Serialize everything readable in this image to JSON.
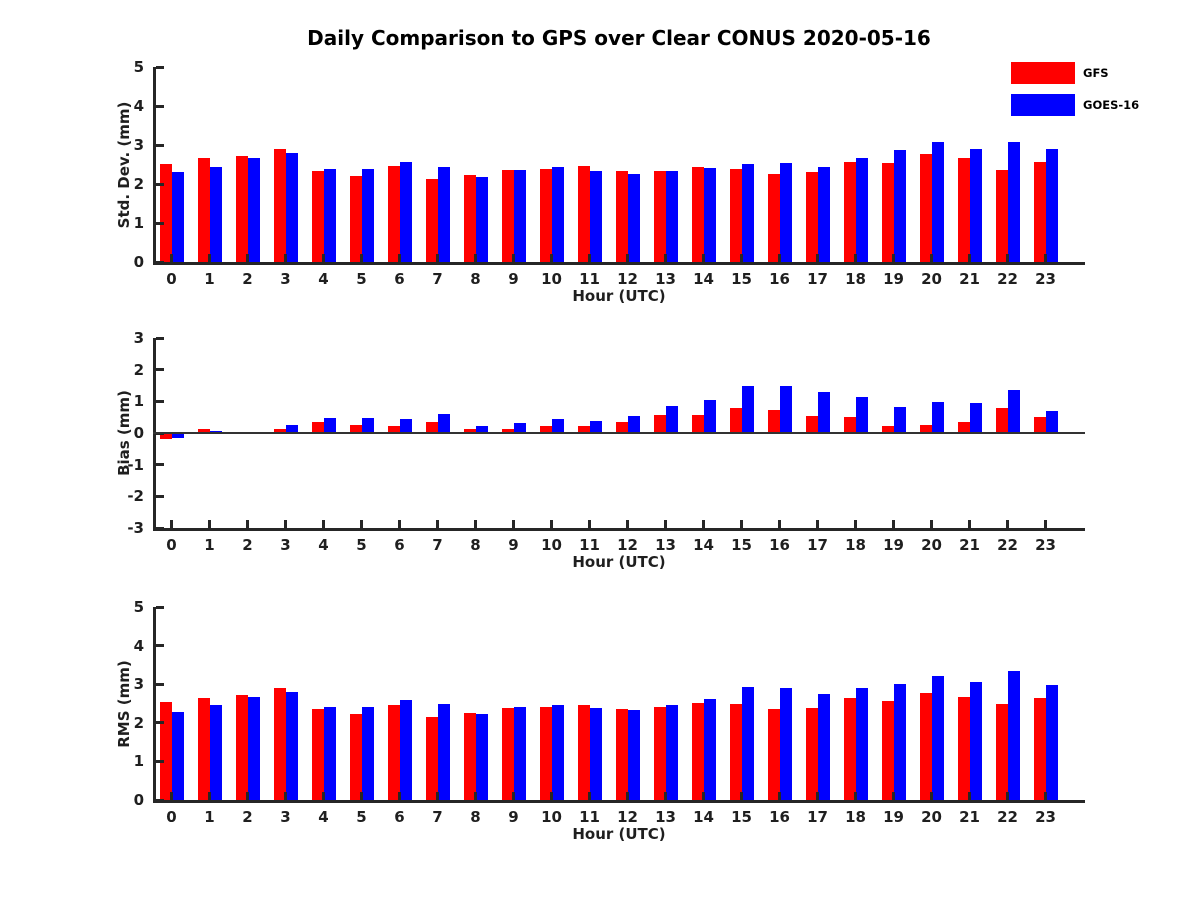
{
  "title": "Daily Comparison to GPS over Clear CONUS 2020-05-16",
  "axis_color": "#262626",
  "legend": {
    "position": "top-right",
    "items": [
      {
        "label": "GFS",
        "color": "#ff0000"
      },
      {
        "label": "GOES-16",
        "color": "#0000ff"
      }
    ]
  },
  "chart_data": [
    {
      "type": "bar",
      "name": "std-dev",
      "ylabel": "Std. Dev. (mm)",
      "xlabel": "Hour (UTC)",
      "ylim": [
        0,
        5
      ],
      "yticks": [
        0,
        1,
        2,
        3,
        4,
        5
      ],
      "grid": false,
      "zero_line": false,
      "categories": [
        "0",
        "1",
        "2",
        "3",
        "4",
        "5",
        "6",
        "7",
        "8",
        "9",
        "10",
        "11",
        "12",
        "13",
        "14",
        "15",
        "16",
        "17",
        "18",
        "19",
        "20",
        "21",
        "22",
        "23"
      ],
      "series": [
        {
          "name": "GFS",
          "color": "#ff0000",
          "values": [
            2.52,
            2.66,
            2.71,
            2.91,
            2.34,
            2.21,
            2.46,
            2.13,
            2.23,
            2.36,
            2.38,
            2.46,
            2.33,
            2.34,
            2.44,
            2.38,
            2.25,
            2.3,
            2.57,
            2.55,
            2.76,
            2.66,
            2.36,
            2.57
          ]
        },
        {
          "name": "GOES-16",
          "color": "#0000ff",
          "values": [
            2.31,
            2.43,
            2.67,
            2.8,
            2.39,
            2.39,
            2.56,
            2.44,
            2.18,
            2.36,
            2.43,
            2.34,
            2.26,
            2.33,
            2.42,
            2.52,
            2.53,
            2.43,
            2.66,
            2.87,
            3.07,
            2.91,
            3.08,
            2.91
          ]
        }
      ]
    },
    {
      "type": "bar",
      "name": "bias",
      "ylabel": "Bias (mm)",
      "xlabel": "Hour (UTC)",
      "ylim": [
        -3,
        3
      ],
      "yticks": [
        -3,
        -2,
        -1,
        0,
        1,
        2,
        3
      ],
      "grid": false,
      "zero_line": true,
      "categories": [
        "0",
        "1",
        "2",
        "3",
        "4",
        "5",
        "6",
        "7",
        "8",
        "9",
        "10",
        "11",
        "12",
        "13",
        "14",
        "15",
        "16",
        "17",
        "18",
        "19",
        "20",
        "21",
        "22",
        "23"
      ],
      "series": [
        {
          "name": "GFS",
          "color": "#ff0000",
          "values": [
            -0.19,
            0.12,
            -0.04,
            0.13,
            0.34,
            0.26,
            0.23,
            0.36,
            0.13,
            0.12,
            0.23,
            0.22,
            0.35,
            0.56,
            0.57,
            0.8,
            0.72,
            0.55,
            0.5,
            0.22,
            0.25,
            0.34,
            0.79,
            0.52
          ]
        },
        {
          "name": "GOES-16",
          "color": "#0000ff",
          "values": [
            -0.15,
            0.06,
            -0.02,
            0.26,
            0.47,
            0.47,
            0.45,
            0.6,
            0.23,
            0.31,
            0.43,
            0.38,
            0.53,
            0.84,
            1.04,
            1.47,
            1.47,
            1.28,
            1.15,
            0.83,
            0.97,
            0.95,
            1.36,
            0.7
          ]
        }
      ]
    },
    {
      "type": "bar",
      "name": "rms",
      "ylabel": "RMS (mm)",
      "xlabel": "Hour (UTC)",
      "ylim": [
        0,
        5
      ],
      "yticks": [
        0,
        1,
        2,
        3,
        4,
        5
      ],
      "grid": false,
      "zero_line": false,
      "categories": [
        "0",
        "1",
        "2",
        "3",
        "4",
        "5",
        "6",
        "7",
        "8",
        "9",
        "10",
        "11",
        "12",
        "13",
        "14",
        "15",
        "16",
        "17",
        "18",
        "19",
        "20",
        "21",
        "22",
        "23"
      ],
      "series": [
        {
          "name": "GFS",
          "color": "#ff0000",
          "values": [
            2.53,
            2.65,
            2.71,
            2.91,
            2.37,
            2.22,
            2.46,
            2.16,
            2.25,
            2.38,
            2.41,
            2.45,
            2.35,
            2.41,
            2.51,
            2.5,
            2.36,
            2.39,
            2.65,
            2.56,
            2.76,
            2.68,
            2.5,
            2.63
          ]
        },
        {
          "name": "GOES-16",
          "color": "#0000ff",
          "values": [
            2.29,
            2.45,
            2.68,
            2.81,
            2.41,
            2.42,
            2.6,
            2.5,
            2.22,
            2.4,
            2.47,
            2.39,
            2.33,
            2.46,
            2.61,
            2.92,
            2.91,
            2.74,
            2.89,
            3.0,
            3.21,
            3.06,
            3.35,
            2.99
          ]
        }
      ]
    }
  ]
}
